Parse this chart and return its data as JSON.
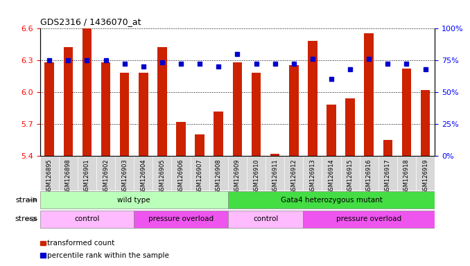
{
  "title": "GDS2316 / 1436070_at",
  "samples": [
    "GSM126895",
    "GSM126898",
    "GSM126901",
    "GSM126902",
    "GSM126903",
    "GSM126904",
    "GSM126905",
    "GSM126906",
    "GSM126907",
    "GSM126908",
    "GSM126909",
    "GSM126910",
    "GSM126911",
    "GSM126912",
    "GSM126913",
    "GSM126914",
    "GSM126915",
    "GSM126916",
    "GSM126917",
    "GSM126918",
    "GSM126919"
  ],
  "bar_values": [
    6.28,
    6.42,
    6.6,
    6.28,
    6.18,
    6.18,
    6.42,
    5.72,
    5.6,
    5.82,
    6.28,
    6.18,
    5.42,
    6.25,
    6.48,
    5.88,
    5.94,
    6.55,
    5.55,
    6.22,
    6.02
  ],
  "dot_values": [
    75,
    75,
    75,
    75,
    72,
    70,
    73,
    72,
    72,
    70,
    80,
    72,
    72,
    72,
    76,
    60,
    68,
    76,
    72,
    72,
    68
  ],
  "ylim_left": [
    5.4,
    6.6
  ],
  "ylim_right": [
    0,
    100
  ],
  "yticks_left": [
    5.4,
    5.7,
    6.0,
    6.3,
    6.6
  ],
  "yticks_right": [
    0,
    25,
    50,
    75,
    100
  ],
  "bar_color": "#CC2200",
  "dot_color": "#0000CC",
  "background_color": "#FFFFFF",
  "tick_area_color": "#D8D8D8",
  "strain_groups": [
    {
      "label": "wild type",
      "start": 0,
      "end": 10,
      "color": "#BBFFBB"
    },
    {
      "label": "Gata4 heterozygous mutant",
      "start": 10,
      "end": 21,
      "color": "#44DD44"
    }
  ],
  "stress_groups": [
    {
      "label": "control",
      "start": 0,
      "end": 5,
      "color": "#FFBBFF"
    },
    {
      "label": "pressure overload",
      "start": 5,
      "end": 10,
      "color": "#EE55EE"
    },
    {
      "label": "control",
      "start": 10,
      "end": 14,
      "color": "#FFBBFF"
    },
    {
      "label": "pressure overload",
      "start": 14,
      "end": 21,
      "color": "#EE55EE"
    }
  ],
  "legend_bar_label": "transformed count",
  "legend_dot_label": "percentile rank within the sample",
  "strain_label": "strain",
  "stress_label": "stress"
}
